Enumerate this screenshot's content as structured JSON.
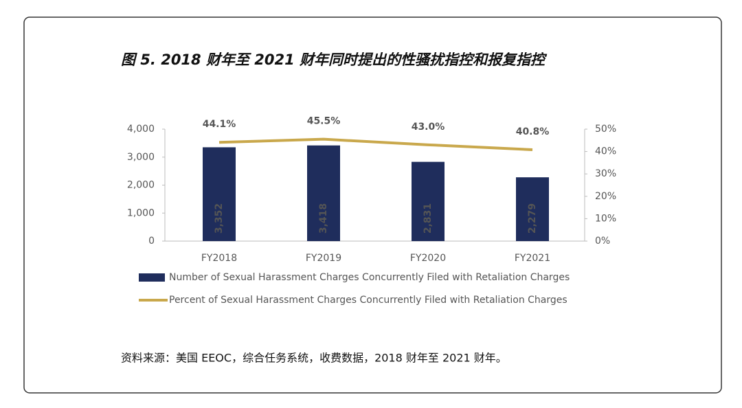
{
  "chart_data": {
    "type": "bar",
    "title": "图 5. 2018 财年至 2021 财年同时提出的性骚扰指控和报复指控",
    "source": "资料来源：美国 EEOC，综合任务系统，收费数据，2018 财年至 2021 财年。",
    "categories": [
      "FY2018",
      "FY2019",
      "FY2020",
      "FY2021"
    ],
    "series": [
      {
        "name": "Number of Sexual Harassment Charges Concurrently Filed with Retaliation Charges",
        "type": "bar",
        "color": "#1f2d5c",
        "values": [
          3352,
          3418,
          2831,
          2279
        ],
        "value_labels": [
          "3,352",
          "3,418",
          "2,831",
          "2,279"
        ]
      },
      {
        "name": "Percent of Sexual Harassment Charges Concurrently Filed with Retaliation Charges",
        "type": "line",
        "color": "#c9a84c",
        "axis": "y2",
        "values": [
          44.1,
          45.5,
          43.0,
          40.8
        ],
        "value_labels": [
          "44.1%",
          "45.5%",
          "43.0%",
          "40.8%"
        ]
      }
    ],
    "ylim": [
      0,
      4000
    ],
    "yticks": [
      0,
      {
        "value": 1000,
        "label": "1,000"
      },
      {
        "value": 2000,
        "label": "2,000"
      },
      {
        "value": 3000,
        "label": "3,000"
      },
      {
        "value": 4000,
        "label": "4,000"
      }
    ],
    "y2lim": [
      0,
      50
    ],
    "y2ticks": [
      {
        "value": 0,
        "label": "0%"
      },
      {
        "value": 10,
        "label": "10%"
      },
      {
        "value": 20,
        "label": "20%"
      },
      {
        "value": 30,
        "label": "30%"
      },
      {
        "value": 40,
        "label": "40%"
      },
      {
        "value": 50,
        "label": "50%"
      }
    ],
    "grid": false,
    "legend": "bottom"
  }
}
